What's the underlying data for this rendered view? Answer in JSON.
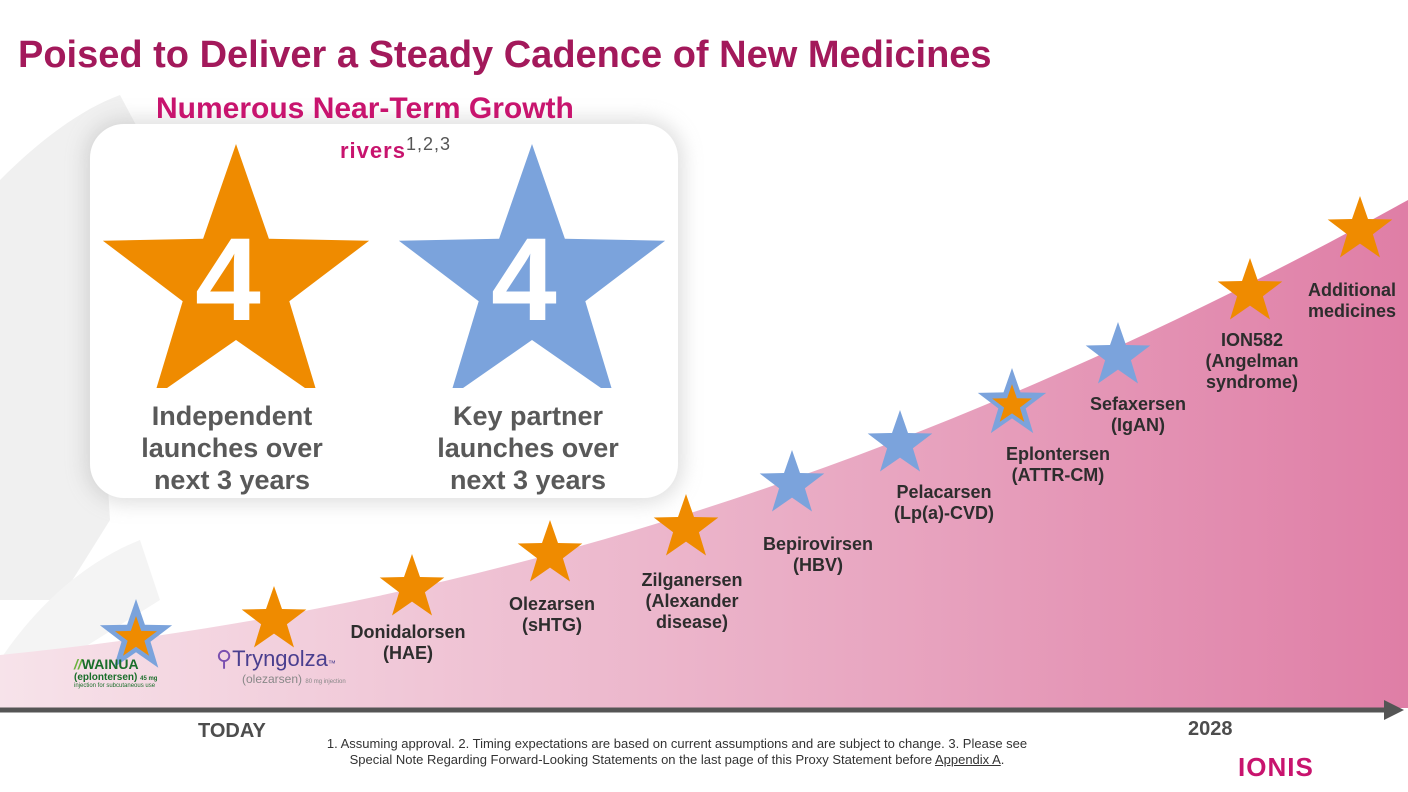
{
  "title": "Poised to Deliver a Steady Cadence of New Medicines",
  "subtitle_line1": "Numerous Near-Term Growth",
  "subtitle_line2": "rivers",
  "subtitle_refs": "1,2,3",
  "callouts": [
    {
      "number": "4",
      "label": [
        "Independent",
        "launches over",
        "next 3 years"
      ],
      "color": "#ef8b00"
    },
    {
      "number": "4",
      "label": [
        "Key partner",
        "launches over",
        "next 3 years"
      ],
      "color": "#7ba3dc"
    }
  ],
  "milestones": [
    {
      "label": [],
      "type": "both",
      "brand": "wainua"
    },
    {
      "label": [],
      "type": "independent",
      "brand": "tryngolza"
    },
    {
      "label": [
        "Donidalorsen",
        "(HAE)"
      ],
      "type": "independent"
    },
    {
      "label": [
        "Olezarsen",
        "(sHTG)"
      ],
      "type": "independent"
    },
    {
      "label": [
        "Zilganersen",
        "(Alexander",
        "disease)"
      ],
      "type": "independent"
    },
    {
      "label": [
        "Bepirovirsen",
        "(HBV)"
      ],
      "type": "partner"
    },
    {
      "label": [
        "Pelacarsen",
        "(Lp(a)-CVD)"
      ],
      "type": "partner"
    },
    {
      "label": [
        "Eplontersen",
        "(ATTR-CM)"
      ],
      "type": "both"
    },
    {
      "label": [
        "Sefaxersen",
        "(IgAN)"
      ],
      "type": "partner"
    },
    {
      "label": [
        "ION582",
        "(Angelman",
        "syndrome)"
      ],
      "type": "independent"
    },
    {
      "label": [
        "Additional",
        "medicines"
      ],
      "type": "independent"
    }
  ],
  "axis": {
    "start": "TODAY",
    "end": "2028"
  },
  "wainua": {
    "name": "WAINUA",
    "generic": "(eplontersen)",
    "dose": "45 mg",
    "route": "injection for subcutaneous use"
  },
  "tryngolza": {
    "name": "Tryngolza",
    "generic": "(olezarsen)",
    "dose": "80 mg injection"
  },
  "footnote_line1": "1. Assuming approval. 2. Timing expectations are based on current assumptions and are subject to change. 3. Please see",
  "footnote_line2": "Special Note Regarding Forward-Looking Statements on the last page of this Proxy Statement before",
  "footnote_link": "Appendix A",
  "footnote_end": ".",
  "logo": "IONIS",
  "colors": {
    "independent": "#ef8b00",
    "partner": "#7ba3dc",
    "title": "#a3195b",
    "accent": "#c8146e"
  }
}
